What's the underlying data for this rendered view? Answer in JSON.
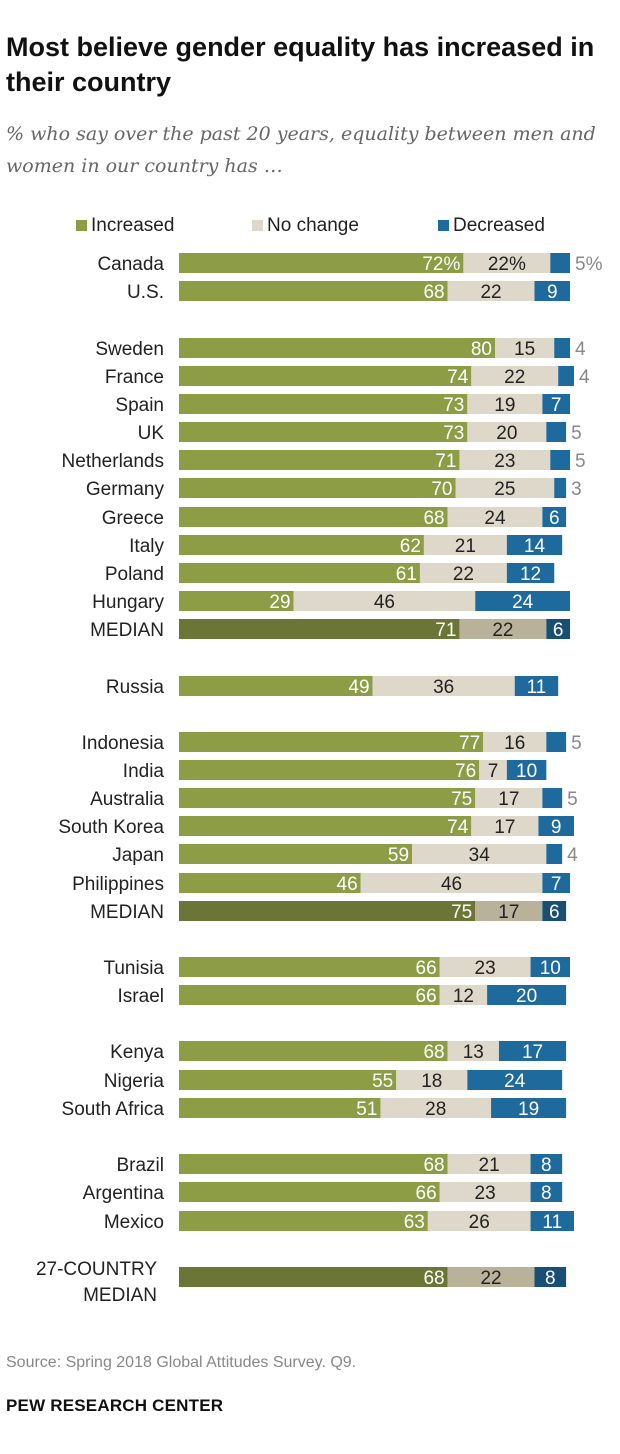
{
  "title": "Most believe gender equality has increased in their country",
  "subtitle": "% who say over the past 20 years, equality between men and women in our country has …",
  "legend": {
    "increased": "Increased",
    "no_change": "No change",
    "decreased": "Decreased"
  },
  "colors": {
    "increased": "#8c9d46",
    "no_change": "#ddd8c9",
    "decreased": "#1f6a9c",
    "median_increased": "#6b7536",
    "median_no_change": "#b9b29b",
    "median_decreased": "#1a4f75",
    "outside_label": "#888888"
  },
  "chart_data": {
    "type": "bar",
    "stacked": true,
    "orientation": "horizontal",
    "series": [
      {
        "name": "Increased"
      },
      {
        "name": "No change"
      },
      {
        "name": "Decreased"
      }
    ],
    "rows": [
      {
        "label": "Canada",
        "values": [
          72,
          22,
          5
        ],
        "labels": [
          "72%",
          "22%",
          "5%"
        ]
      },
      {
        "label": "U.S.",
        "values": [
          68,
          22,
          9
        ]
      },
      {
        "label": "Sweden",
        "values": [
          80,
          15,
          4
        ]
      },
      {
        "label": "France",
        "values": [
          74,
          22,
          4
        ]
      },
      {
        "label": "Spain",
        "values": [
          73,
          19,
          7
        ]
      },
      {
        "label": "UK",
        "values": [
          73,
          20,
          5
        ]
      },
      {
        "label": "Netherlands",
        "values": [
          71,
          23,
          5
        ]
      },
      {
        "label": "Germany",
        "values": [
          70,
          25,
          3
        ]
      },
      {
        "label": "Greece",
        "values": [
          68,
          24,
          6
        ]
      },
      {
        "label": "Italy",
        "values": [
          62,
          21,
          14
        ]
      },
      {
        "label": "Poland",
        "values": [
          61,
          22,
          12
        ]
      },
      {
        "label": "Hungary",
        "values": [
          29,
          46,
          24
        ]
      },
      {
        "label": "MEDIAN",
        "values": [
          71,
          22,
          6
        ],
        "median": true
      },
      {
        "label": "Russia",
        "values": [
          49,
          36,
          11
        ]
      },
      {
        "label": "Indonesia",
        "values": [
          77,
          16,
          5
        ]
      },
      {
        "label": "India",
        "values": [
          76,
          7,
          10
        ]
      },
      {
        "label": "Australia",
        "values": [
          75,
          17,
          5
        ]
      },
      {
        "label": "South Korea",
        "values": [
          74,
          17,
          9
        ]
      },
      {
        "label": "Japan",
        "values": [
          59,
          34,
          4
        ]
      },
      {
        "label": "Philippines",
        "values": [
          46,
          46,
          7
        ]
      },
      {
        "label": "MEDIAN",
        "values": [
          75,
          17,
          6
        ],
        "median": true
      },
      {
        "label": "Tunisia",
        "values": [
          66,
          23,
          10
        ]
      },
      {
        "label": "Israel",
        "values": [
          66,
          12,
          20
        ]
      },
      {
        "label": "Kenya",
        "values": [
          68,
          13,
          17
        ]
      },
      {
        "label": "Nigeria",
        "values": [
          55,
          18,
          24
        ]
      },
      {
        "label": "South Africa",
        "values": [
          51,
          28,
          19
        ]
      },
      {
        "label": "Brazil",
        "values": [
          68,
          21,
          8
        ]
      },
      {
        "label": "Argentina",
        "values": [
          66,
          23,
          8
        ]
      },
      {
        "label": "Mexico",
        "values": [
          63,
          26,
          11
        ]
      },
      {
        "label": "27-COUNTRY MEDIAN",
        "label_lines": [
          "27-COUNTRY",
          "MEDIAN"
        ],
        "values": [
          68,
          22,
          8
        ],
        "median": true
      }
    ]
  },
  "source": "Source: Spring 2018 Global Attitudes Survey. Q9.",
  "brand": "PEW RESEARCH CENTER"
}
